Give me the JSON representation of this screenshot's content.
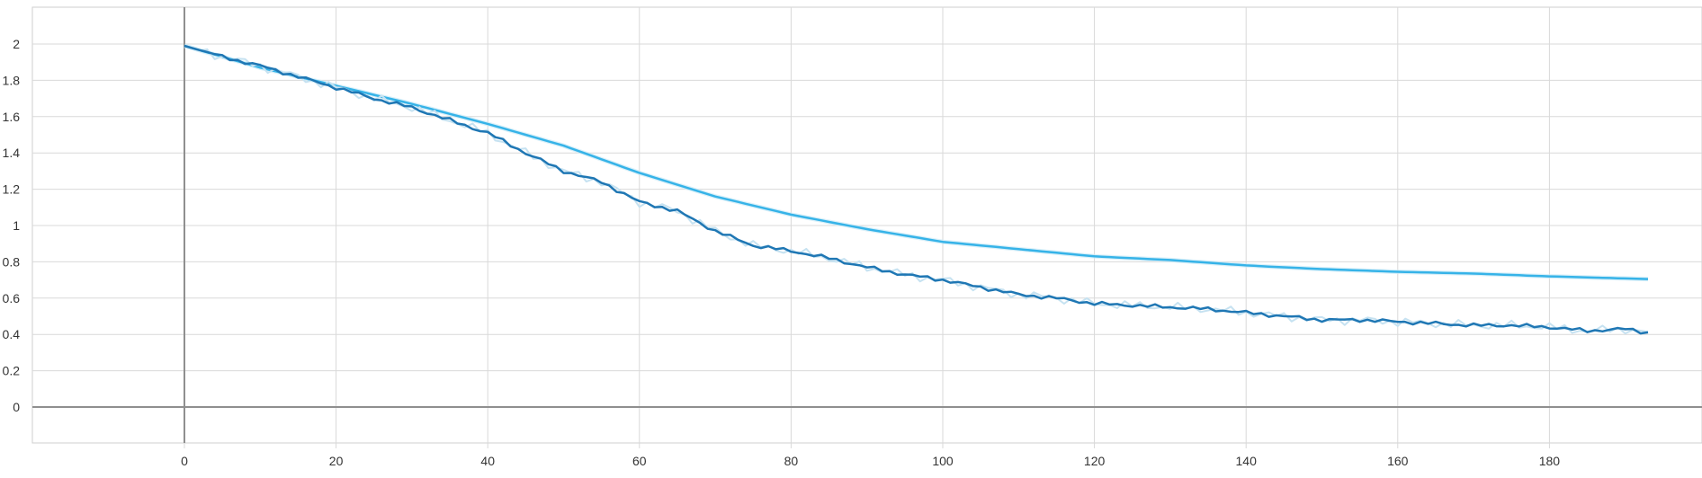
{
  "chart_data": {
    "type": "line",
    "title": "",
    "xlabel": "",
    "ylabel": "",
    "xlim": [
      -20,
      200
    ],
    "ylim": [
      -0.2,
      2.2
    ],
    "x_ticks": [
      0,
      20,
      40,
      60,
      80,
      100,
      120,
      140,
      160,
      180
    ],
    "x_tick_labels": [
      "0",
      "20",
      "40",
      "60",
      "80",
      "100",
      "120",
      "140",
      "160",
      "180"
    ],
    "y_ticks": [
      0,
      0.2,
      0.4,
      0.6,
      0.8,
      1,
      1.2,
      1.4,
      1.6,
      1.8,
      2
    ],
    "y_tick_labels": [
      "0",
      "0.2",
      "0.4",
      "0.6",
      "0.8",
      "1",
      "1.2",
      "1.4",
      "1.6",
      "1.8",
      "2"
    ],
    "grid": true,
    "legend": "none",
    "series": [
      {
        "color": "#36b3e8",
        "style": "smoothed",
        "x": [
          0,
          10,
          20,
          30,
          40,
          50,
          60,
          70,
          80,
          90,
          100,
          110,
          120,
          130,
          140,
          150,
          160,
          170,
          180,
          193
        ],
        "values": [
          1.99,
          1.87,
          1.77,
          1.67,
          1.56,
          1.44,
          1.29,
          1.16,
          1.06,
          0.98,
          0.91,
          0.87,
          0.83,
          0.81,
          0.78,
          0.76,
          0.745,
          0.735,
          0.72,
          0.705
        ]
      },
      {
        "color": "#1f77b4",
        "raw_color": "#c6e2f1",
        "style": "noisy",
        "x": [
          0,
          5,
          10,
          15,
          20,
          25,
          30,
          35,
          40,
          45,
          50,
          55,
          60,
          65,
          70,
          75,
          80,
          85,
          90,
          95,
          100,
          105,
          110,
          115,
          120,
          125,
          130,
          135,
          140,
          145,
          150,
          155,
          160,
          165,
          170,
          175,
          180,
          185,
          190,
          193
        ],
        "values": [
          1.99,
          1.93,
          1.88,
          1.82,
          1.76,
          1.7,
          1.65,
          1.58,
          1.51,
          1.4,
          1.3,
          1.24,
          1.13,
          1.08,
          0.97,
          0.89,
          0.86,
          0.82,
          0.77,
          0.73,
          0.7,
          0.66,
          0.62,
          0.6,
          0.57,
          0.56,
          0.55,
          0.54,
          0.52,
          0.5,
          0.48,
          0.48,
          0.47,
          0.46,
          0.45,
          0.45,
          0.44,
          0.42,
          0.43,
          0.41
        ]
      }
    ]
  }
}
